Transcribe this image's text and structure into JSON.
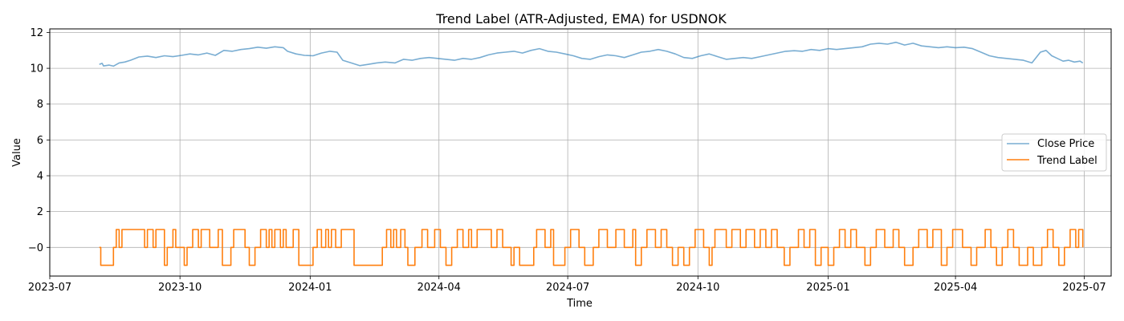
{
  "chart_data": {
    "type": "line",
    "title": "Trend Label (ATR-Adjusted, EMA) for USDNOK",
    "xlabel": "Time",
    "ylabel": "Value",
    "xlim": [
      "2023-07-01",
      "2025-07-20"
    ],
    "ylim": [
      -1.6,
      12.2
    ],
    "grid": true,
    "legend_position": "center-right",
    "x_ticks": [
      "2023-07",
      "2023-10",
      "2024-01",
      "2024-04",
      "2024-07",
      "2024-10",
      "2025-01",
      "2025-04",
      "2025-07"
    ],
    "y_ticks": [
      0,
      2,
      4,
      6,
      8,
      10,
      12
    ],
    "series": [
      {
        "name": "Close Price",
        "color": "#1f77b4",
        "opacity": 0.6,
        "points": [
          [
            "2023-08-05",
            10.22
          ],
          [
            "2023-08-07",
            10.28
          ],
          [
            "2023-08-08",
            10.13
          ],
          [
            "2023-08-12",
            10.18
          ],
          [
            "2023-08-15",
            10.12
          ],
          [
            "2023-08-19",
            10.3
          ],
          [
            "2023-08-23",
            10.35
          ],
          [
            "2023-08-27",
            10.45
          ],
          [
            "2023-09-02",
            10.63
          ],
          [
            "2023-09-08",
            10.68
          ],
          [
            "2023-09-14",
            10.6
          ],
          [
            "2023-09-20",
            10.7
          ],
          [
            "2023-09-26",
            10.65
          ],
          [
            "2023-10-02",
            10.72
          ],
          [
            "2023-10-08",
            10.8
          ],
          [
            "2023-10-14",
            10.75
          ],
          [
            "2023-10-20",
            10.85
          ],
          [
            "2023-10-26",
            10.72
          ],
          [
            "2023-11-01",
            11.0
          ],
          [
            "2023-11-07",
            10.95
          ],
          [
            "2023-11-13",
            11.05
          ],
          [
            "2023-11-19",
            11.1
          ],
          [
            "2023-11-25",
            11.18
          ],
          [
            "2023-12-01",
            11.12
          ],
          [
            "2023-12-07",
            11.2
          ],
          [
            "2023-12-13",
            11.15
          ],
          [
            "2023-12-16",
            10.95
          ],
          [
            "2023-12-22",
            10.8
          ],
          [
            "2023-12-28",
            10.72
          ],
          [
            "2024-01-03",
            10.7
          ],
          [
            "2024-01-09",
            10.85
          ],
          [
            "2024-01-15",
            10.95
          ],
          [
            "2024-01-20",
            10.9
          ],
          [
            "2024-01-24",
            10.45
          ],
          [
            "2024-01-30",
            10.3
          ],
          [
            "2024-02-05",
            10.15
          ],
          [
            "2024-02-11",
            10.22
          ],
          [
            "2024-02-17",
            10.3
          ],
          [
            "2024-02-23",
            10.35
          ],
          [
            "2024-03-01",
            10.3
          ],
          [
            "2024-03-07",
            10.5
          ],
          [
            "2024-03-13",
            10.45
          ],
          [
            "2024-03-19",
            10.55
          ],
          [
            "2024-03-25",
            10.6
          ],
          [
            "2024-03-31",
            10.55
          ],
          [
            "2024-04-06",
            10.5
          ],
          [
            "2024-04-12",
            10.45
          ],
          [
            "2024-04-18",
            10.55
          ],
          [
            "2024-04-24",
            10.5
          ],
          [
            "2024-04-30",
            10.6
          ],
          [
            "2024-05-06",
            10.75
          ],
          [
            "2024-05-12",
            10.85
          ],
          [
            "2024-05-18",
            10.9
          ],
          [
            "2024-05-24",
            10.95
          ],
          [
            "2024-05-30",
            10.85
          ],
          [
            "2024-06-05",
            11.0
          ],
          [
            "2024-06-11",
            11.1
          ],
          [
            "2024-06-17",
            10.95
          ],
          [
            "2024-06-23",
            10.9
          ],
          [
            "2024-06-29",
            10.8
          ],
          [
            "2024-07-05",
            10.7
          ],
          [
            "2024-07-11",
            10.55
          ],
          [
            "2024-07-17",
            10.5
          ],
          [
            "2024-07-23",
            10.65
          ],
          [
            "2024-07-29",
            10.75
          ],
          [
            "2024-08-04",
            10.7
          ],
          [
            "2024-08-10",
            10.6
          ],
          [
            "2024-08-16",
            10.75
          ],
          [
            "2024-08-22",
            10.9
          ],
          [
            "2024-08-28",
            10.95
          ],
          [
            "2024-09-03",
            11.05
          ],
          [
            "2024-09-09",
            10.95
          ],
          [
            "2024-09-15",
            10.8
          ],
          [
            "2024-09-21",
            10.6
          ],
          [
            "2024-09-27",
            10.55
          ],
          [
            "2024-10-03",
            10.7
          ],
          [
            "2024-10-09",
            10.8
          ],
          [
            "2024-10-15",
            10.65
          ],
          [
            "2024-10-21",
            10.5
          ],
          [
            "2024-10-27",
            10.55
          ],
          [
            "2024-11-02",
            10.6
          ],
          [
            "2024-11-08",
            10.55
          ],
          [
            "2024-11-14",
            10.65
          ],
          [
            "2024-11-20",
            10.75
          ],
          [
            "2024-11-26",
            10.85
          ],
          [
            "2024-12-02",
            10.95
          ],
          [
            "2024-12-08",
            10.98
          ],
          [
            "2024-12-14",
            10.95
          ],
          [
            "2024-12-20",
            11.05
          ],
          [
            "2024-12-26",
            11.0
          ],
          [
            "2025-01-01",
            11.1
          ],
          [
            "2025-01-07",
            11.05
          ],
          [
            "2025-01-13",
            11.1
          ],
          [
            "2025-01-19",
            11.15
          ],
          [
            "2025-01-25",
            11.2
          ],
          [
            "2025-01-31",
            11.35
          ],
          [
            "2025-02-06",
            11.4
          ],
          [
            "2025-02-12",
            11.35
          ],
          [
            "2025-02-18",
            11.45
          ],
          [
            "2025-02-24",
            11.3
          ],
          [
            "2025-03-02",
            11.4
          ],
          [
            "2025-03-08",
            11.25
          ],
          [
            "2025-03-14",
            11.2
          ],
          [
            "2025-03-20",
            11.15
          ],
          [
            "2025-03-26",
            11.2
          ],
          [
            "2025-04-01",
            11.15
          ],
          [
            "2025-04-07",
            11.18
          ],
          [
            "2025-04-13",
            11.1
          ],
          [
            "2025-04-19",
            10.9
          ],
          [
            "2025-04-25",
            10.7
          ],
          [
            "2025-05-01",
            10.6
          ],
          [
            "2025-05-07",
            10.55
          ],
          [
            "2025-05-13",
            10.5
          ],
          [
            "2025-05-19",
            10.45
          ],
          [
            "2025-05-25",
            10.3
          ],
          [
            "2025-05-31",
            10.9
          ],
          [
            "2025-06-04",
            11.0
          ],
          [
            "2025-06-08",
            10.7
          ],
          [
            "2025-06-12",
            10.55
          ],
          [
            "2025-06-16",
            10.4
          ],
          [
            "2025-06-20",
            10.45
          ],
          [
            "2025-06-24",
            10.35
          ],
          [
            "2025-06-28",
            10.4
          ],
          [
            "2025-06-30",
            10.3
          ]
        ]
      },
      {
        "name": "Trend Label",
        "color": "#ff7f0e",
        "opacity": 1,
        "steps": [
          [
            "2023-08-05",
            0
          ],
          [
            "2023-08-06",
            -1
          ],
          [
            "2023-08-15",
            0
          ],
          [
            "2023-08-17",
            1
          ],
          [
            "2023-08-19",
            0
          ],
          [
            "2023-08-21",
            1
          ],
          [
            "2023-09-06",
            0
          ],
          [
            "2023-09-08",
            1
          ],
          [
            "2023-09-12",
            0
          ],
          [
            "2023-09-14",
            1
          ],
          [
            "2023-09-20",
            -1
          ],
          [
            "2023-09-22",
            0
          ],
          [
            "2023-09-26",
            1
          ],
          [
            "2023-09-28",
            0
          ],
          [
            "2023-10-04",
            -1
          ],
          [
            "2023-10-06",
            0
          ],
          [
            "2023-10-10",
            1
          ],
          [
            "2023-10-14",
            0
          ],
          [
            "2023-10-16",
            1
          ],
          [
            "2023-10-22",
            0
          ],
          [
            "2023-10-28",
            1
          ],
          [
            "2023-10-31",
            -1
          ],
          [
            "2023-11-06",
            0
          ],
          [
            "2023-11-08",
            1
          ],
          [
            "2023-11-16",
            0
          ],
          [
            "2023-11-19",
            -1
          ],
          [
            "2023-11-23",
            0
          ],
          [
            "2023-11-27",
            1
          ],
          [
            "2023-12-01",
            0
          ],
          [
            "2023-12-03",
            1
          ],
          [
            "2023-12-05",
            0
          ],
          [
            "2023-12-07",
            1
          ],
          [
            "2023-12-11",
            0
          ],
          [
            "2023-12-13",
            1
          ],
          [
            "2023-12-15",
            0
          ],
          [
            "2023-12-20",
            1
          ],
          [
            "2023-12-24",
            -1
          ],
          [
            "2024-01-01",
            -1
          ],
          [
            "2024-01-03",
            0
          ],
          [
            "2024-01-06",
            1
          ],
          [
            "2024-01-09",
            0
          ],
          [
            "2024-01-12",
            1
          ],
          [
            "2024-01-14",
            0
          ],
          [
            "2024-01-16",
            1
          ],
          [
            "2024-01-19",
            0
          ],
          [
            "2024-01-23",
            1
          ],
          [
            "2024-02-01",
            -1
          ],
          [
            "2024-02-21",
            0
          ],
          [
            "2024-02-24",
            1
          ],
          [
            "2024-02-27",
            0
          ],
          [
            "2024-02-29",
            1
          ],
          [
            "2024-03-02",
            0
          ],
          [
            "2024-03-05",
            1
          ],
          [
            "2024-03-08",
            0
          ],
          [
            "2024-03-10",
            -1
          ],
          [
            "2024-03-15",
            0
          ],
          [
            "2024-03-20",
            1
          ],
          [
            "2024-03-24",
            0
          ],
          [
            "2024-03-29",
            1
          ],
          [
            "2024-04-02",
            0
          ],
          [
            "2024-04-06",
            -1
          ],
          [
            "2024-04-10",
            0
          ],
          [
            "2024-04-14",
            1
          ],
          [
            "2024-04-18",
            0
          ],
          [
            "2024-04-22",
            1
          ],
          [
            "2024-04-24",
            0
          ],
          [
            "2024-04-28",
            1
          ],
          [
            "2024-05-08",
            0
          ],
          [
            "2024-05-12",
            1
          ],
          [
            "2024-05-16",
            0
          ],
          [
            "2024-05-22",
            -1
          ],
          [
            "2024-05-24",
            0
          ],
          [
            "2024-05-28",
            -1
          ],
          [
            "2024-06-07",
            0
          ],
          [
            "2024-06-09",
            1
          ],
          [
            "2024-06-15",
            0
          ],
          [
            "2024-06-19",
            1
          ],
          [
            "2024-06-21",
            -1
          ],
          [
            "2024-06-29",
            0
          ],
          [
            "2024-07-03",
            1
          ],
          [
            "2024-07-09",
            0
          ],
          [
            "2024-07-13",
            -1
          ],
          [
            "2024-07-19",
            0
          ],
          [
            "2024-07-23",
            1
          ],
          [
            "2024-07-29",
            0
          ],
          [
            "2024-08-04",
            1
          ],
          [
            "2024-08-10",
            0
          ],
          [
            "2024-08-16",
            1
          ],
          [
            "2024-08-18",
            -1
          ],
          [
            "2024-08-22",
            0
          ],
          [
            "2024-08-26",
            1
          ],
          [
            "2024-09-01",
            0
          ],
          [
            "2024-09-05",
            1
          ],
          [
            "2024-09-09",
            0
          ],
          [
            "2024-09-13",
            -1
          ],
          [
            "2024-09-17",
            0
          ],
          [
            "2024-09-21",
            -1
          ],
          [
            "2024-09-25",
            0
          ],
          [
            "2024-09-29",
            1
          ],
          [
            "2024-10-05",
            0
          ],
          [
            "2024-10-09",
            -1
          ],
          [
            "2024-10-11",
            0
          ],
          [
            "2024-10-13",
            1
          ],
          [
            "2024-10-21",
            0
          ],
          [
            "2024-10-25",
            1
          ],
          [
            "2024-10-31",
            0
          ],
          [
            "2024-11-04",
            1
          ],
          [
            "2024-11-10",
            0
          ],
          [
            "2024-11-14",
            1
          ],
          [
            "2024-11-18",
            0
          ],
          [
            "2024-11-22",
            1
          ],
          [
            "2024-11-26",
            0
          ],
          [
            "2024-12-01",
            -1
          ],
          [
            "2024-12-05",
            0
          ],
          [
            "2024-12-11",
            1
          ],
          [
            "2024-12-15",
            0
          ],
          [
            "2024-12-19",
            1
          ],
          [
            "2024-12-23",
            -1
          ],
          [
            "2024-12-27",
            0
          ],
          [
            "2025-01-01",
            -1
          ],
          [
            "2025-01-05",
            0
          ],
          [
            "2025-01-09",
            1
          ],
          [
            "2025-01-13",
            0
          ],
          [
            "2025-01-17",
            1
          ],
          [
            "2025-01-21",
            0
          ],
          [
            "2025-01-27",
            -1
          ],
          [
            "2025-01-31",
            0
          ],
          [
            "2025-02-04",
            1
          ],
          [
            "2025-02-10",
            0
          ],
          [
            "2025-02-16",
            1
          ],
          [
            "2025-02-20",
            0
          ],
          [
            "2025-02-24",
            -1
          ],
          [
            "2025-03-02",
            0
          ],
          [
            "2025-03-06",
            1
          ],
          [
            "2025-03-12",
            0
          ],
          [
            "2025-03-16",
            1
          ],
          [
            "2025-03-22",
            -1
          ],
          [
            "2025-03-26",
            0
          ],
          [
            "2025-03-30",
            1
          ],
          [
            "2025-04-06",
            0
          ],
          [
            "2025-04-12",
            -1
          ],
          [
            "2025-04-16",
            0
          ],
          [
            "2025-04-22",
            1
          ],
          [
            "2025-04-26",
            0
          ],
          [
            "2025-04-30",
            -1
          ],
          [
            "2025-05-04",
            0
          ],
          [
            "2025-05-08",
            1
          ],
          [
            "2025-05-12",
            0
          ],
          [
            "2025-05-16",
            -1
          ],
          [
            "2025-05-22",
            0
          ],
          [
            "2025-05-26",
            -1
          ],
          [
            "2025-06-01",
            0
          ],
          [
            "2025-06-05",
            1
          ],
          [
            "2025-06-09",
            0
          ],
          [
            "2025-06-13",
            -1
          ],
          [
            "2025-06-17",
            0
          ],
          [
            "2025-06-21",
            1
          ],
          [
            "2025-06-25",
            0
          ],
          [
            "2025-06-27",
            1
          ],
          [
            "2025-06-30",
            0
          ]
        ]
      }
    ]
  }
}
